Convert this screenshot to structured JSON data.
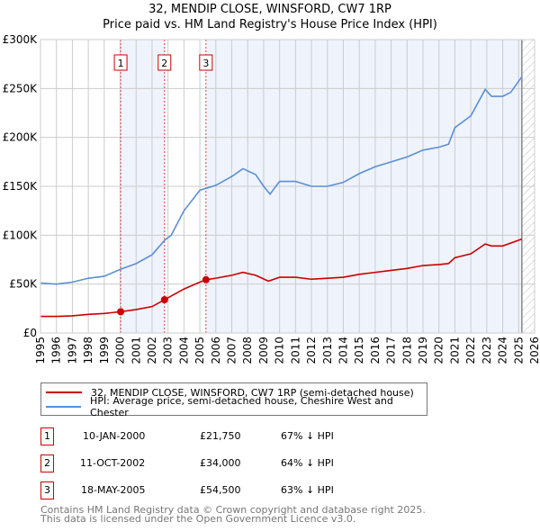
{
  "title": "32, MENDIP CLOSE, WINSFORD, CW7 1RP",
  "subtitle": "Price paid vs. HM Land Registry's House Price Index (HPI)",
  "chart_data": {
    "type": "line",
    "title": "32, MENDIP CLOSE, WINSFORD, CW7 1RP",
    "subtitle": "Price paid vs. HM Land Registry's House Price Index (HPI)",
    "xlim": [
      1995,
      2026
    ],
    "ylim": [
      0,
      300000
    ],
    "y_ticks": [
      {
        "v": 0,
        "label": "£0"
      },
      {
        "v": 50000,
        "label": "£50K"
      },
      {
        "v": 100000,
        "label": "£100K"
      },
      {
        "v": 150000,
        "label": "£150K"
      },
      {
        "v": 200000,
        "label": "£200K"
      },
      {
        "v": 250000,
        "label": "£250K"
      },
      {
        "v": 300000,
        "label": "£300K"
      }
    ],
    "x_ticks": [
      "1995",
      "1996",
      "1997",
      "1998",
      "1999",
      "2000",
      "2001",
      "2002",
      "2003",
      "2004",
      "2005",
      "2006",
      "2007",
      "2008",
      "2009",
      "2010",
      "2011",
      "2012",
      "2013",
      "2014",
      "2015",
      "2016",
      "2017",
      "2018",
      "2019",
      "2020",
      "2021",
      "2022",
      "2023",
      "2024",
      "2025",
      "2026"
    ],
    "grid": true,
    "forecast_from": 2025.2,
    "series": [
      {
        "name": "32, MENDIP CLOSE, WINSFORD, CW7 1RP (semi-detached house)",
        "color": "#cc0000",
        "points": [
          [
            1995,
            17000
          ],
          [
            1996,
            17000
          ],
          [
            1997,
            17500
          ],
          [
            1998,
            19000
          ],
          [
            1999,
            20000
          ],
          [
            2000.03,
            21750
          ],
          [
            2001,
            24000
          ],
          [
            2002,
            27000
          ],
          [
            2002.78,
            34000
          ],
          [
            2004,
            45000
          ],
          [
            2005,
            52000
          ],
          [
            2005.38,
            54500
          ],
          [
            2006,
            56000
          ],
          [
            2007,
            59000
          ],
          [
            2007.7,
            62000
          ],
          [
            2008.5,
            59000
          ],
          [
            2009.3,
            53000
          ],
          [
            2010,
            57000
          ],
          [
            2011,
            57000
          ],
          [
            2012,
            55000
          ],
          [
            2013,
            56000
          ],
          [
            2014,
            57000
          ],
          [
            2015,
            60000
          ],
          [
            2016,
            62000
          ],
          [
            2017,
            64000
          ],
          [
            2018,
            66000
          ],
          [
            2019,
            69000
          ],
          [
            2020,
            70000
          ],
          [
            2020.6,
            71000
          ],
          [
            2021,
            77000
          ],
          [
            2022,
            81000
          ],
          [
            2022.9,
            91000
          ],
          [
            2023.3,
            89000
          ],
          [
            2024,
            89000
          ],
          [
            2025.2,
            96000
          ]
        ]
      },
      {
        "name": "HPI: Average price, semi-detached house, Cheshire West and Chester",
        "color": "#5b8fd4",
        "points": [
          [
            1995,
            51000
          ],
          [
            1996,
            50000
          ],
          [
            1997,
            52000
          ],
          [
            1998,
            56000
          ],
          [
            1999,
            58000
          ],
          [
            2000,
            65000
          ],
          [
            2001,
            71000
          ],
          [
            2002,
            80000
          ],
          [
            2002.8,
            95000
          ],
          [
            2003.2,
            100000
          ],
          [
            2004,
            125000
          ],
          [
            2005,
            146000
          ],
          [
            2005.4,
            148000
          ],
          [
            2006,
            151000
          ],
          [
            2007,
            160000
          ],
          [
            2007.7,
            168000
          ],
          [
            2008.5,
            162000
          ],
          [
            2009,
            150000
          ],
          [
            2009.4,
            142000
          ],
          [
            2010,
            155000
          ],
          [
            2011,
            155000
          ],
          [
            2012,
            150000
          ],
          [
            2013,
            150000
          ],
          [
            2014,
            154000
          ],
          [
            2015,
            163000
          ],
          [
            2016,
            170000
          ],
          [
            2017,
            175000
          ],
          [
            2018,
            180000
          ],
          [
            2019,
            187000
          ],
          [
            2020,
            190000
          ],
          [
            2020.6,
            193000
          ],
          [
            2021,
            210000
          ],
          [
            2022,
            222000
          ],
          [
            2022.9,
            249000
          ],
          [
            2023.3,
            242000
          ],
          [
            2024,
            242000
          ],
          [
            2024.5,
            246000
          ],
          [
            2025.2,
            262000
          ]
        ]
      }
    ],
    "sales": [
      {
        "n": "1",
        "x": 2000.03,
        "y": 21750
      },
      {
        "n": "2",
        "x": 2002.78,
        "y": 34000
      },
      {
        "n": "3",
        "x": 2005.38,
        "y": 54500
      }
    ]
  },
  "legend": {
    "property": "32, MENDIP CLOSE, WINSFORD, CW7 1RP (semi-detached house)",
    "hpi": "HPI: Average price, semi-detached house, Cheshire West and Chester"
  },
  "transactions": [
    {
      "n": "1",
      "date": "10-JAN-2000",
      "price": "£21,750",
      "hpi": "67% ↓ HPI"
    },
    {
      "n": "2",
      "date": "11-OCT-2002",
      "price": "£34,000",
      "hpi": "64% ↓ HPI"
    },
    {
      "n": "3",
      "date": "18-MAY-2005",
      "price": "£54,500",
      "hpi": "63% ↓ HPI"
    }
  ],
  "footer": [
    "Contains HM Land Registry data © Crown copyright and database right 2025.",
    "This data is licensed under the Open Government Licence v3.0."
  ]
}
